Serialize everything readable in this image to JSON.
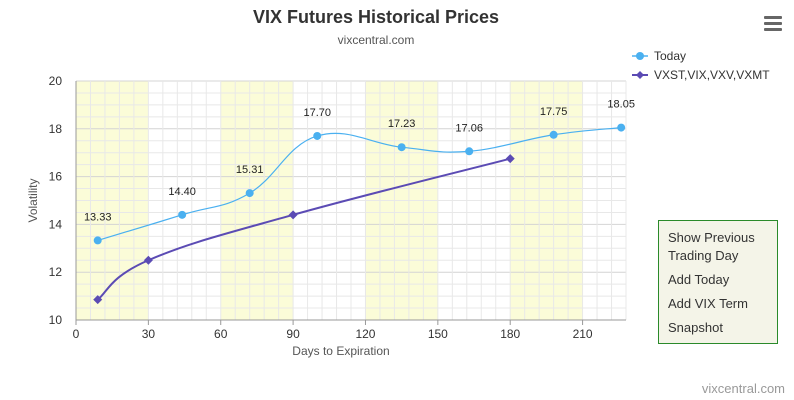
{
  "header": {
    "title": "VIX Futures Historical Prices",
    "subtitle": "vixcentral.com"
  },
  "menu": {
    "icon": "hamburger-menu-icon"
  },
  "context_menu": {
    "items": [
      "Show Previous Trading Day",
      "Add Today",
      "Add VIX Term",
      "Snapshot"
    ]
  },
  "credit": "vixcentral.com",
  "colors": {
    "today": "#4ab0f0",
    "term": "#5b4bb4",
    "band": "#fbfcd8",
    "grid": "#dddddd"
  },
  "chart_data": {
    "type": "line",
    "xlabel": "Days to Expiration",
    "ylabel": "Volatility",
    "xlim": [
      0,
      228
    ],
    "ylim": [
      10,
      20
    ],
    "xticks": [
      0,
      30,
      60,
      90,
      120,
      150,
      180,
      210
    ],
    "yticks": [
      10,
      12,
      14,
      16,
      18,
      20
    ],
    "shaded_bands": [
      [
        0,
        30
      ],
      [
        60,
        90
      ],
      [
        120,
        150
      ],
      [
        180,
        210
      ]
    ],
    "legend_position": "top-right",
    "series": [
      {
        "name": "Today",
        "marker": "circle",
        "smooth": true,
        "x": [
          9,
          44,
          72,
          100,
          135,
          163,
          198,
          226
        ],
        "y": [
          13.33,
          14.4,
          15.31,
          17.7,
          17.23,
          17.06,
          17.75,
          18.05
        ],
        "data_labels": [
          "13.33",
          "14.40",
          "15.31",
          "17.70",
          "17.23",
          "17.06",
          "17.75",
          "18.05"
        ]
      },
      {
        "name": "VXST,VIX,VXV,VXMT",
        "marker": "diamond",
        "smooth": true,
        "x": [
          9,
          30,
          90,
          180
        ],
        "y": [
          10.85,
          12.5,
          14.4,
          16.75
        ]
      }
    ]
  }
}
